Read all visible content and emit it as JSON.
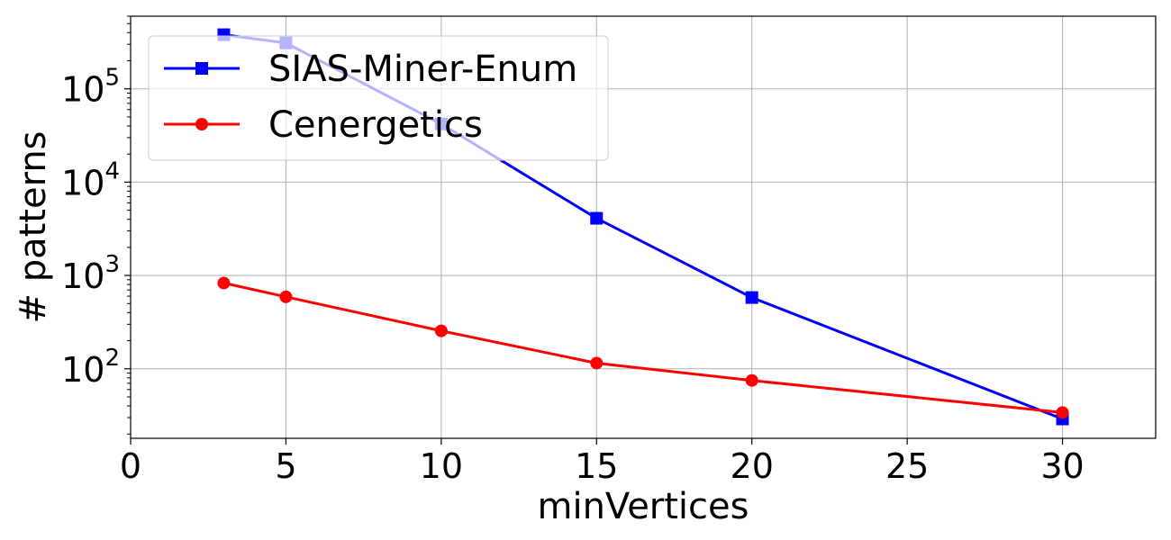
{
  "chart_data": {
    "type": "line",
    "xlabel": "minVertices",
    "ylabel": "# patterns",
    "xlim": [
      0,
      33
    ],
    "ylim": [
      18,
      600000
    ],
    "yscale": "log",
    "grid": true,
    "legend_position": "top-left",
    "x_ticks": [
      "0",
      "5",
      "10",
      "15",
      "20",
      "25",
      "30"
    ],
    "x_tick_values": [
      0,
      5,
      10,
      15,
      20,
      25,
      30
    ],
    "y_ticks": [
      {
        "value": 100,
        "base": "10",
        "exp": "2"
      },
      {
        "value": 1000,
        "base": "10",
        "exp": "3"
      },
      {
        "value": 10000,
        "base": "10",
        "exp": "4"
      },
      {
        "value": 100000,
        "base": "10",
        "exp": "5"
      }
    ],
    "series": [
      {
        "name": "SIAS-Miner-Enum",
        "color": "#0000ff",
        "marker": "square",
        "x": [
          3,
          5,
          10,
          15,
          20,
          30
        ],
        "values": [
          380000,
          310000,
          42000,
          4100,
          580,
          29
        ]
      },
      {
        "name": "Cenergetics",
        "color": "#ff0000",
        "marker": "circle",
        "x": [
          3,
          5,
          10,
          15,
          20,
          30
        ],
        "values": [
          830,
          590,
          255,
          115,
          75,
          34
        ]
      }
    ]
  }
}
